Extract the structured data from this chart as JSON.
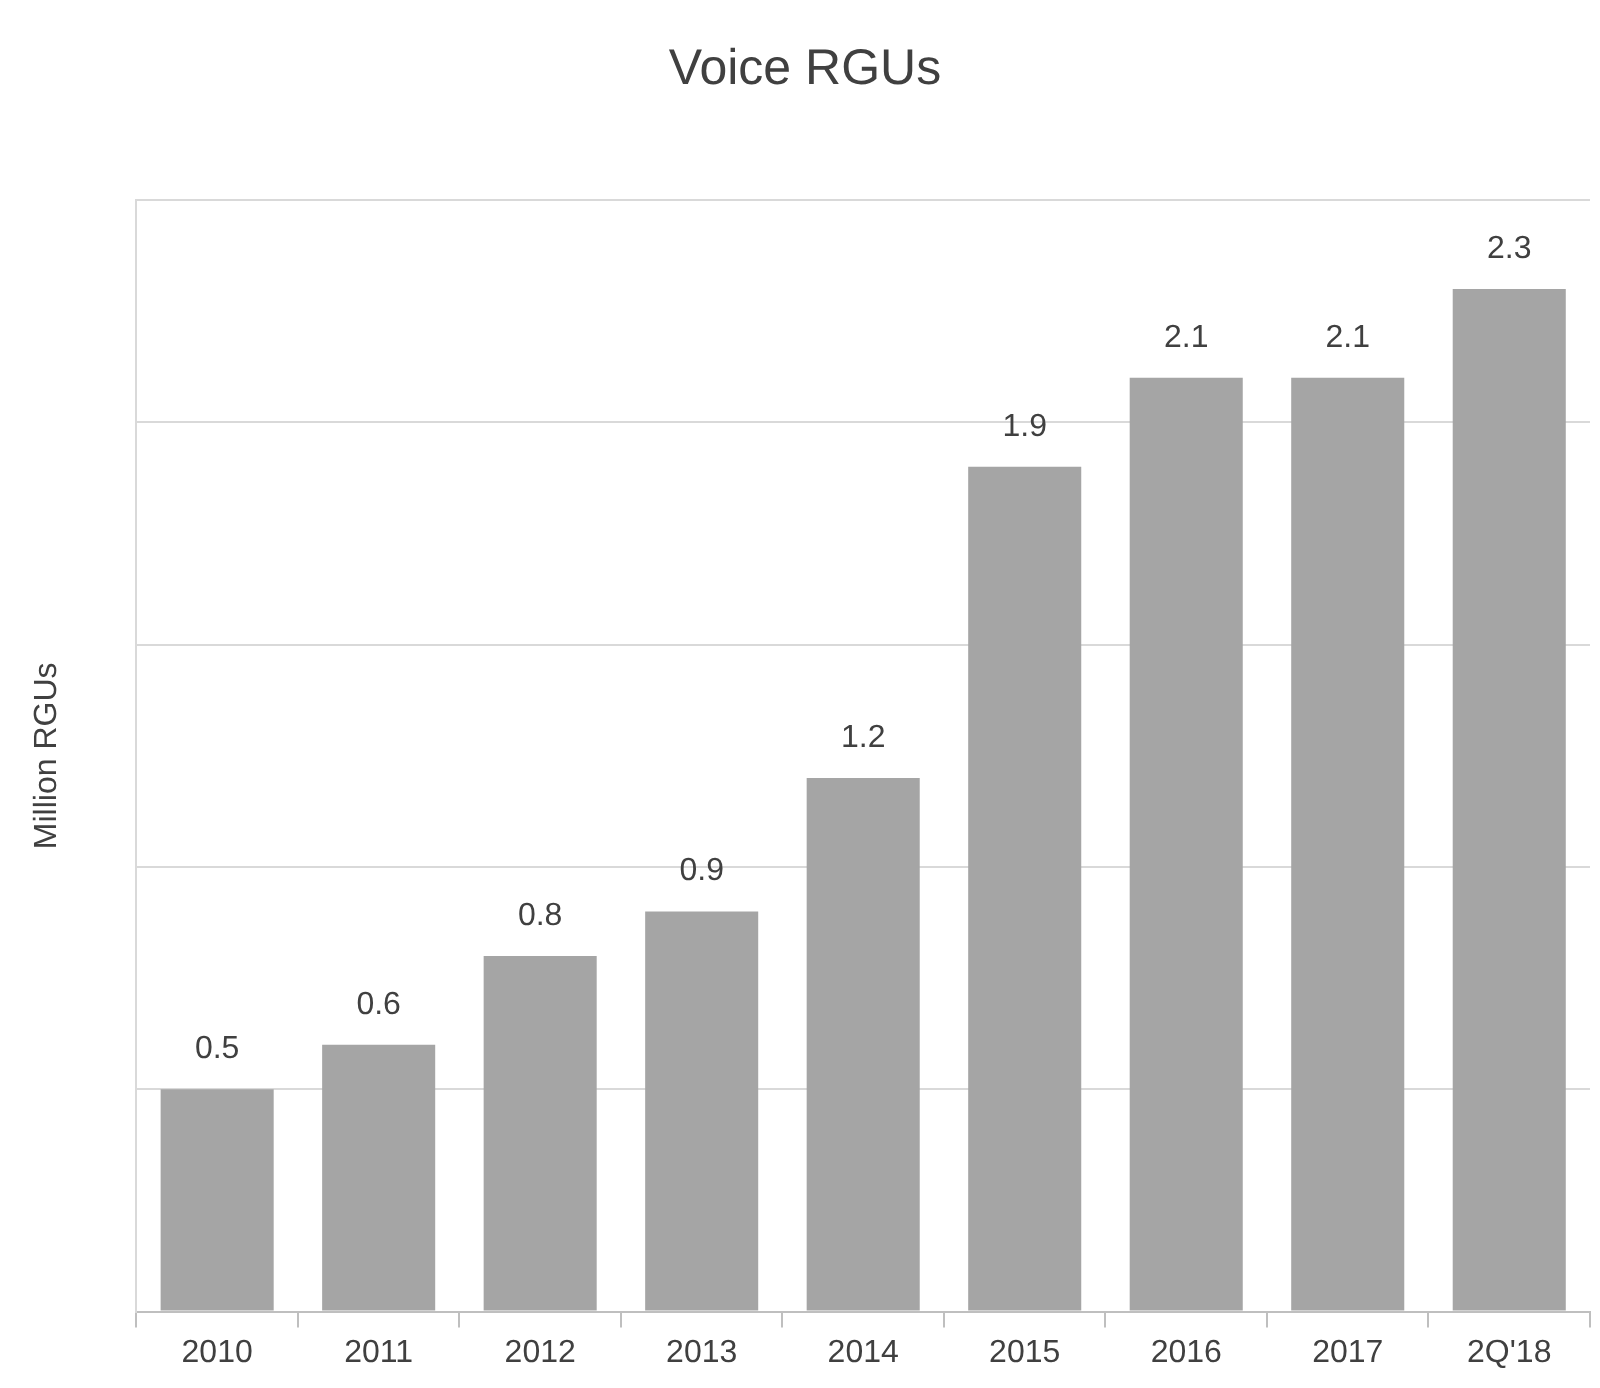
{
  "chart_data": {
    "type": "bar",
    "title": "Voice RGUs",
    "ylabel": "Million RGUs",
    "categories": [
      "2010",
      "2011",
      "2012",
      "2013",
      "2014",
      "2015",
      "2016",
      "2017",
      "2Q'18"
    ],
    "values": [
      0.5,
      0.6,
      0.8,
      0.9,
      1.2,
      1.9,
      2.1,
      2.1,
      2.3
    ],
    "color": "#a5a5a5",
    "ylim": [
      0,
      2.5
    ],
    "yticks": [
      {
        "value": 0,
        "label": null
      },
      {
        "value": 0.5,
        "label": null
      },
      {
        "value": 1,
        "label": null
      },
      {
        "value": 1.5,
        "label": null
      },
      {
        "value": 2,
        "label": null
      },
      {
        "value": 2.5,
        "label": null
      }
    ],
    "grid": "y",
    "tick_labels": "x",
    "data_labels": true
  }
}
